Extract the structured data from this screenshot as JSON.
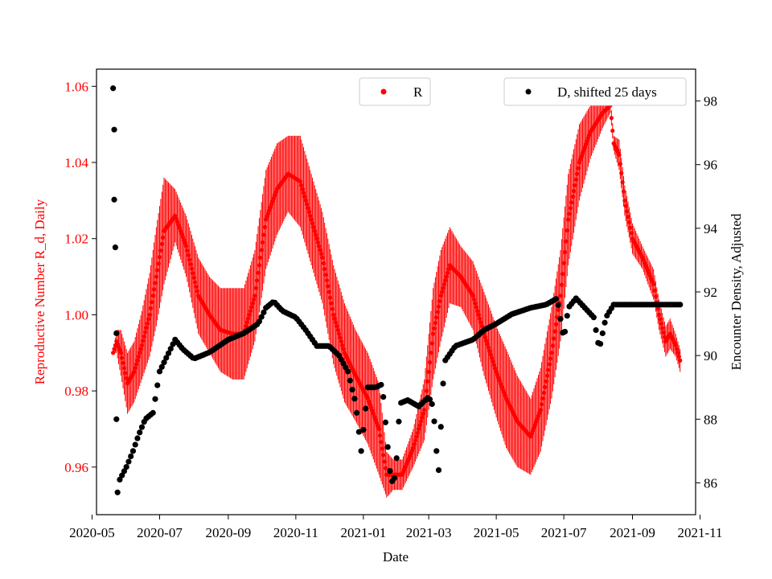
{
  "chart_data": {
    "type": "scatter",
    "title": "",
    "xlabel": "Date",
    "ylabel_left": "Reproductive Number R_d, Daily",
    "ylabel_right": "Encounter Density, Adjusted",
    "x_range": [
      "2020-05-05",
      "2021-10-28"
    ],
    "y_left_range": [
      0.9475,
      1.0645
    ],
    "y_right_range": [
      85.0,
      99.0
    ],
    "x_ticks": [
      "2020-05-01",
      "2020-07-01",
      "2020-09-01",
      "2020-11-01",
      "2021-01-01",
      "2021-03-01",
      "2021-05-01",
      "2021-07-01",
      "2021-09-01",
      "2021-11-01"
    ],
    "x_tick_labels": [
      "2020-05",
      "2020-07",
      "2020-09",
      "2020-11",
      "2021-01",
      "2021-03",
      "2021-05",
      "2021-07",
      "2021-09",
      "2021-11"
    ],
    "y_left_ticks": [
      0.96,
      0.98,
      1.0,
      1.02,
      1.04,
      1.06
    ],
    "y_left_tick_labels": [
      "0.96",
      "0.98",
      "1.00",
      "1.02",
      "1.04",
      "1.06"
    ],
    "y_right_ticks": [
      86,
      88,
      90,
      92,
      94,
      96,
      98
    ],
    "y_right_tick_labels": [
      "86",
      "88",
      "90",
      "92",
      "94",
      "96",
      "98"
    ],
    "left_axis_color": "#ff0000",
    "right_axis_color": "#000000",
    "legend": [
      {
        "label": "R",
        "color": "#ff0000",
        "placement": "top-center"
      },
      {
        "label": "D, shifted 25 days",
        "color": "#000000",
        "placement": "top-right"
      }
    ],
    "series": [
      {
        "name": "R",
        "axis": "left",
        "color": "#ff0000",
        "error_bars": true,
        "keypoints": [
          [
            "2020-05-20",
            0.99,
            0.0
          ],
          [
            "2020-05-23",
            0.993,
            0.003
          ],
          [
            "2020-05-27",
            0.99,
            0.006
          ],
          [
            "2020-06-02",
            0.982,
            0.008
          ],
          [
            "2020-06-08",
            0.985,
            0.008
          ],
          [
            "2020-06-15",
            0.992,
            0.009
          ],
          [
            "2020-06-22",
            1.0,
            0.011
          ],
          [
            "2020-06-28",
            1.01,
            0.013
          ],
          [
            "2020-07-05",
            1.022,
            0.014
          ],
          [
            "2020-07-15",
            1.026,
            0.007
          ],
          [
            "2020-07-25",
            1.018,
            0.008
          ],
          [
            "2020-08-05",
            1.005,
            0.01
          ],
          [
            "2020-08-15",
            1.0,
            0.01
          ],
          [
            "2020-08-25",
            0.996,
            0.011
          ],
          [
            "2020-09-05",
            0.995,
            0.012
          ],
          [
            "2020-09-15",
            0.995,
            0.012
          ],
          [
            "2020-09-25",
            1.005,
            0.012
          ],
          [
            "2020-10-05",
            1.025,
            0.013
          ],
          [
            "2020-10-15",
            1.033,
            0.012
          ],
          [
            "2020-10-25",
            1.037,
            0.01
          ],
          [
            "2020-11-05",
            1.035,
            0.012
          ],
          [
            "2020-11-15",
            1.025,
            0.012
          ],
          [
            "2020-11-25",
            1.015,
            0.012
          ],
          [
            "2020-12-05",
            1.0,
            0.013
          ],
          [
            "2020-12-15",
            0.99,
            0.013
          ],
          [
            "2020-12-25",
            0.984,
            0.012
          ],
          [
            "2021-01-05",
            0.978,
            0.012
          ],
          [
            "2021-01-15",
            0.97,
            0.012
          ],
          [
            "2021-01-22",
            0.958,
            0.006
          ],
          [
            "2021-01-28",
            0.958,
            0.004
          ],
          [
            "2021-02-05",
            0.958,
            0.004
          ],
          [
            "2021-02-15",
            0.965,
            0.005
          ],
          [
            "2021-02-25",
            0.975,
            0.008
          ],
          [
            "2021-03-05",
            0.995,
            0.012
          ],
          [
            "2021-03-12",
            1.005,
            0.012
          ],
          [
            "2021-03-20",
            1.013,
            0.01
          ],
          [
            "2021-03-30",
            1.01,
            0.008
          ],
          [
            "2021-04-10",
            1.005,
            0.009
          ],
          [
            "2021-04-20",
            0.995,
            0.011
          ],
          [
            "2021-05-01",
            0.985,
            0.012
          ],
          [
            "2021-05-10",
            0.978,
            0.013
          ],
          [
            "2021-05-20",
            0.972,
            0.012
          ],
          [
            "2021-06-01",
            0.968,
            0.01
          ],
          [
            "2021-06-10",
            0.975,
            0.011
          ],
          [
            "2021-06-20",
            0.99,
            0.012
          ],
          [
            "2021-06-28",
            1.005,
            0.012
          ],
          [
            "2021-07-05",
            1.025,
            0.012
          ],
          [
            "2021-07-15",
            1.04,
            0.01
          ],
          [
            "2021-07-25",
            1.048,
            0.007
          ],
          [
            "2021-08-05",
            1.053,
            0.004
          ],
          [
            "2021-08-12",
            1.055,
            0.002
          ],
          [
            "2021-08-15",
            1.045,
            0.002
          ],
          [
            "2021-08-20",
            1.042,
            0.004
          ],
          [
            "2021-08-25",
            1.03,
            0.004
          ],
          [
            "2021-09-01",
            1.02,
            0.004
          ],
          [
            "2021-09-10",
            1.015,
            0.003
          ],
          [
            "2021-09-20",
            1.008,
            0.004
          ],
          [
            "2021-09-25",
            1.0,
            0.004
          ],
          [
            "2021-10-01",
            0.993,
            0.004
          ],
          [
            "2021-10-05",
            0.995,
            0.004
          ],
          [
            "2021-10-10",
            0.992,
            0.003
          ],
          [
            "2021-10-14",
            0.988,
            0.003
          ]
        ]
      },
      {
        "name": "D, shifted 25 days",
        "axis": "right",
        "color": "#000000",
        "error_bars": false,
        "keypoints": [
          [
            "2020-05-20",
            98.4
          ],
          [
            "2020-05-21",
            97.1
          ],
          [
            "2020-05-21",
            94.9
          ],
          [
            "2020-05-22",
            93.4
          ],
          [
            "2020-05-23",
            90.7
          ],
          [
            "2020-05-23",
            88.0
          ],
          [
            "2020-05-24",
            85.7
          ],
          [
            "2020-05-26",
            86.1
          ],
          [
            "2020-06-01",
            86.5
          ],
          [
            "2020-06-07",
            87.0
          ],
          [
            "2020-06-12",
            87.5
          ],
          [
            "2020-06-18",
            88.0
          ],
          [
            "2020-06-25",
            88.2
          ],
          [
            "2020-07-01",
            89.5
          ],
          [
            "2020-07-08",
            90.0
          ],
          [
            "2020-07-15",
            90.5
          ],
          [
            "2020-07-22",
            90.2
          ],
          [
            "2020-08-01",
            89.9
          ],
          [
            "2020-08-15",
            90.1
          ],
          [
            "2020-09-01",
            90.5
          ],
          [
            "2020-09-15",
            90.7
          ],
          [
            "2020-09-28",
            91.0
          ],
          [
            "2020-10-05",
            91.5
          ],
          [
            "2020-10-12",
            91.7
          ],
          [
            "2020-10-20",
            91.4
          ],
          [
            "2020-11-01",
            91.2
          ],
          [
            "2020-11-10",
            90.8
          ],
          [
            "2020-11-20",
            90.3
          ],
          [
            "2020-12-01",
            90.3
          ],
          [
            "2020-12-10",
            90.0
          ],
          [
            "2020-12-18",
            89.5
          ],
          [
            "2020-12-25",
            88.5
          ],
          [
            "2020-12-30",
            87.0
          ],
          [
            "2021-01-05",
            89.0
          ],
          [
            "2021-01-12",
            89.0
          ],
          [
            "2021-01-18",
            89.1
          ],
          [
            "2021-01-22",
            87.5
          ],
          [
            "2021-01-26",
            86.0
          ],
          [
            "2021-01-30",
            86.2
          ],
          [
            "2021-02-03",
            88.5
          ],
          [
            "2021-02-10",
            88.6
          ],
          [
            "2021-02-20",
            88.4
          ],
          [
            "2021-03-01",
            88.7
          ],
          [
            "2021-03-05",
            88.4
          ],
          [
            "2021-03-08",
            87.0
          ],
          [
            "2021-03-10",
            86.4
          ],
          [
            "2021-03-15",
            89.8
          ],
          [
            "2021-03-25",
            90.3
          ],
          [
            "2021-04-10",
            90.5
          ],
          [
            "2021-04-20",
            90.8
          ],
          [
            "2021-05-01",
            91.0
          ],
          [
            "2021-05-15",
            91.3
          ],
          [
            "2021-06-01",
            91.5
          ],
          [
            "2021-06-15",
            91.6
          ],
          [
            "2021-06-25",
            91.8
          ],
          [
            "2021-07-01",
            90.5
          ],
          [
            "2021-07-05",
            91.5
          ],
          [
            "2021-07-12",
            91.8
          ],
          [
            "2021-07-20",
            91.5
          ],
          [
            "2021-07-28",
            91.2
          ],
          [
            "2021-08-02",
            90.2
          ],
          [
            "2021-08-08",
            91.2
          ],
          [
            "2021-08-15",
            91.6
          ],
          [
            "2021-09-01",
            91.6
          ],
          [
            "2021-10-01",
            91.6
          ],
          [
            "2021-10-14",
            91.6
          ]
        ]
      }
    ]
  }
}
